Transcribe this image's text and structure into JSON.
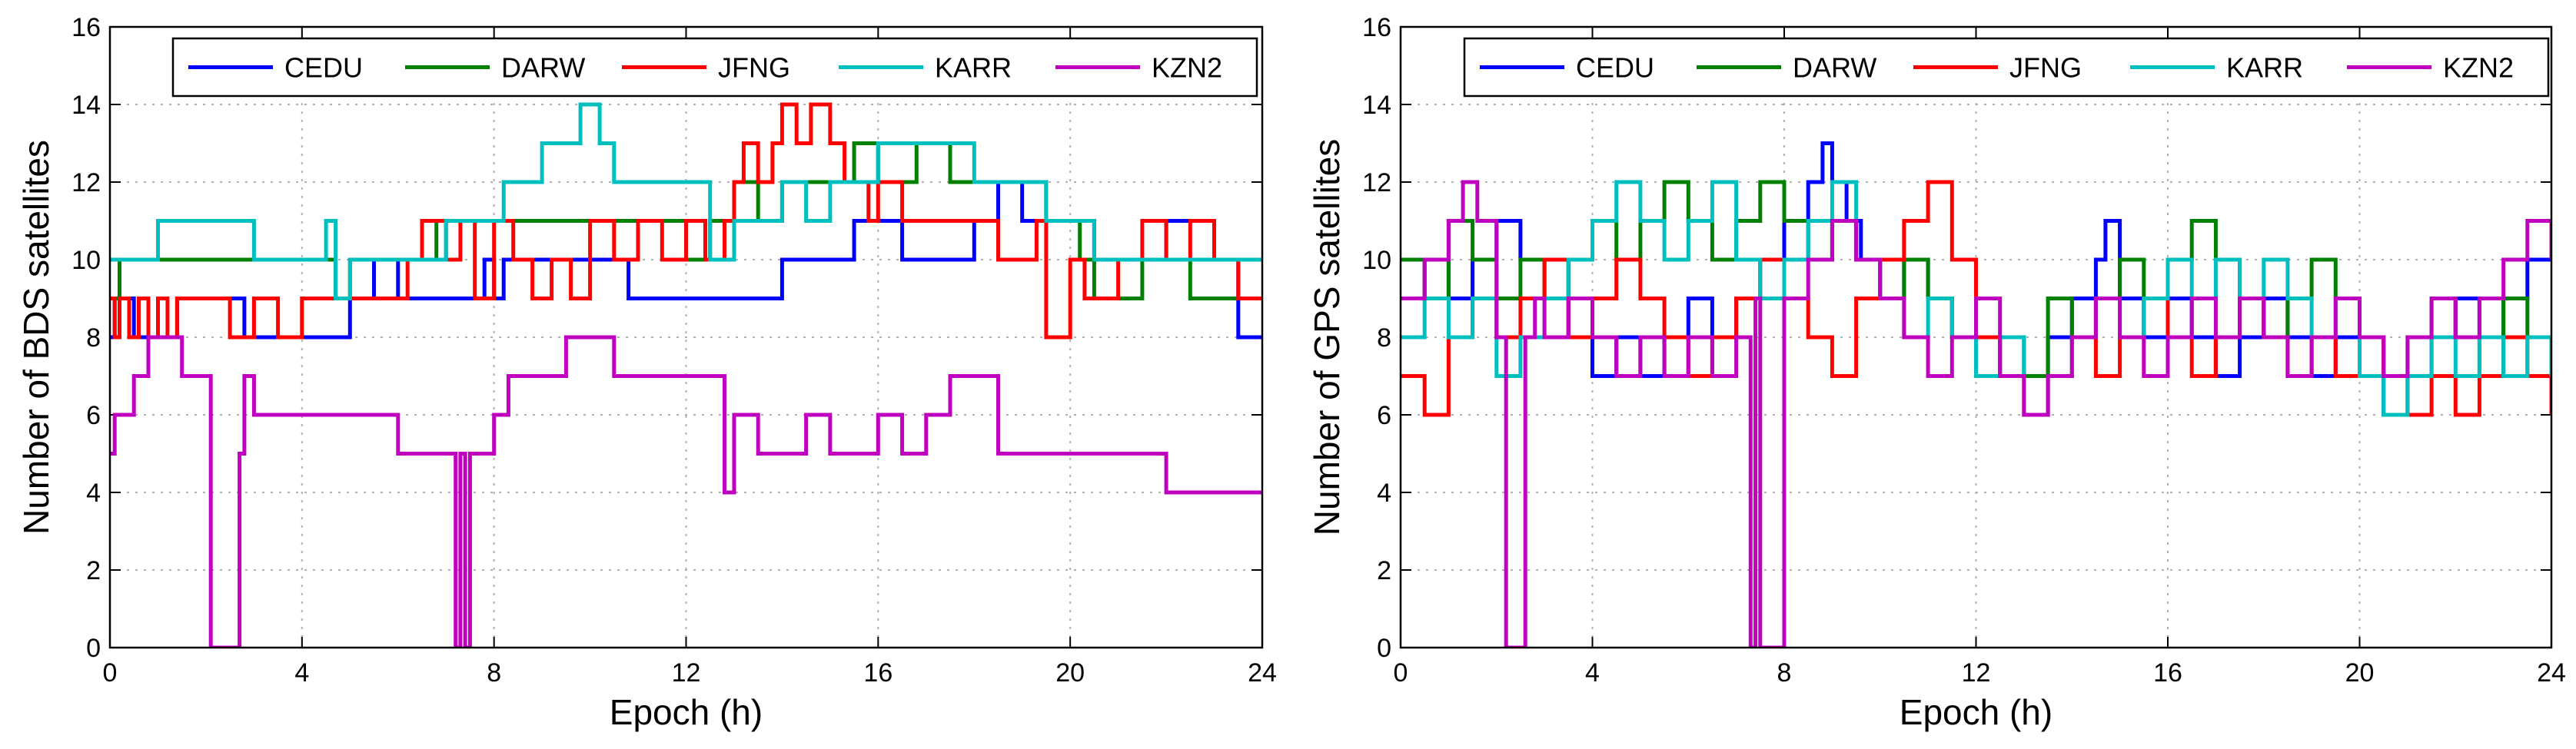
{
  "colors": {
    "CEDU": "#0000ff",
    "DARW": "#008000",
    "JFNG": "#ff0000",
    "KARR": "#00bfbf",
    "KZN2": "#bf00bf",
    "grid": "#b0b0b0",
    "axis": "#000000"
  },
  "chart_data": [
    {
      "type": "line",
      "title": "",
      "xlabel": "Epoch (h)",
      "ylabel": "Number of BDS satellites",
      "xlim": [
        0,
        24
      ],
      "ylim": [
        0,
        16
      ],
      "xticks": [
        "0",
        "4",
        "8",
        "12",
        "16",
        "20",
        "24"
      ],
      "yticks": [
        "0",
        "2",
        "4",
        "6",
        "8",
        "10",
        "12",
        "14",
        "16"
      ],
      "grid": true,
      "legend_position": "top",
      "series": [
        {
          "name": "CEDU",
          "x": [
            0,
            0.1,
            0.5,
            1.4,
            2.8,
            4.8,
            5.0,
            5.5,
            6.0,
            6.2,
            7.8,
            8.0,
            8.2,
            10.2,
            10.8,
            13.5,
            14.0,
            15.0,
            15.5,
            16.0,
            16.5,
            17.8,
            18.0,
            18.5,
            19.0,
            20.0,
            20.5,
            21.5,
            22.0,
            23.0,
            23.5,
            24.0
          ],
          "y": [
            8,
            9,
            8,
            9,
            8,
            8,
            9,
            10,
            9,
            9,
            10,
            9,
            10,
            10,
            9,
            9,
            10,
            10,
            11,
            11,
            10,
            10,
            11,
            12,
            11,
            11,
            10,
            10,
            11,
            10,
            8,
            8
          ]
        },
        {
          "name": "DARW",
          "x": [
            0,
            0.2,
            0.4,
            3.0,
            4.5,
            4.7,
            5.0,
            5.5,
            6.0,
            6.8,
            7.5,
            8.2,
            8.5,
            9.0,
            10.5,
            11.0,
            12.0,
            12.5,
            13.0,
            13.5,
            14.0,
            15.0,
            15.5,
            16.0,
            16.8,
            17.5,
            18.5,
            19.5,
            20.2,
            20.5,
            21.5,
            22.5,
            23.5,
            24.0
          ],
          "y": [
            9,
            10,
            10,
            10,
            10,
            9,
            10,
            10,
            10,
            11,
            11,
            11,
            11,
            11,
            11,
            11,
            10,
            11,
            12,
            11,
            12,
            12,
            13,
            12,
            13,
            12,
            12,
            11,
            10,
            9,
            10,
            9,
            9,
            9
          ]
        },
        {
          "name": "JFNG",
          "x": [
            0,
            0.1,
            0.2,
            0.4,
            0.6,
            0.8,
            1.0,
            1.2,
            1.4,
            2.5,
            3.0,
            3.5,
            4.0,
            5.8,
            6.2,
            6.5,
            7.0,
            7.3,
            7.6,
            8.0,
            8.4,
            8.8,
            9.2,
            9.6,
            10.0,
            10.5,
            11.0,
            11.5,
            12.0,
            12.4,
            12.8,
            13.0,
            13.2,
            13.5,
            13.8,
            14.0,
            14.3,
            14.6,
            15.0,
            15.3,
            15.8,
            16.0,
            16.5,
            17.0,
            18.0,
            18.5,
            19.0,
            19.3,
            19.5,
            20.0,
            20.3,
            21.0,
            21.5,
            22.0,
            22.5,
            23.0,
            23.5,
            24.0
          ],
          "y": [
            9,
            8,
            9,
            8,
            9,
            8,
            9,
            8,
            9,
            8,
            9,
            8,
            9,
            9,
            10,
            11,
            10,
            11,
            9,
            11,
            10,
            9,
            10,
            9,
            11,
            10,
            11,
            10,
            11,
            10,
            11,
            12,
            13,
            12,
            13,
            14,
            13,
            14,
            13,
            12,
            11,
            12,
            11,
            11,
            11,
            10,
            10,
            11,
            8,
            10,
            9,
            10,
            11,
            10,
            11,
            10,
            9,
            9
          ]
        },
        {
          "name": "KARR",
          "x": [
            0,
            0.1,
            0.5,
            1.0,
            1.5,
            2.5,
            3.0,
            4.5,
            4.7,
            5.0,
            5.5,
            6.0,
            7.0,
            7.5,
            8.0,
            8.2,
            8.5,
            9.0,
            9.5,
            9.8,
            10.2,
            10.5,
            11.0,
            11.5,
            12.0,
            12.5,
            13.0,
            13.5,
            14.0,
            14.5,
            15.0,
            15.5,
            16.0,
            17.0,
            18.0,
            18.5,
            19.0,
            19.5,
            20.0,
            20.5,
            21.0,
            22.0,
            22.5,
            23.0,
            24.0
          ],
          "y": [
            10,
            10,
            10,
            11,
            11,
            11,
            10,
            11,
            9,
            10,
            10,
            10,
            11,
            11,
            11,
            12,
            12,
            13,
            13,
            14,
            13,
            12,
            12,
            12,
            12,
            10,
            11,
            11,
            12,
            11,
            12,
            12,
            13,
            13,
            12,
            12,
            12,
            11,
            11,
            10,
            10,
            10,
            10,
            10,
            10
          ]
        },
        {
          "name": "KZN2",
          "x": [
            0,
            0.1,
            0.5,
            0.8,
            1.0,
            1.5,
            1.8,
            2.1,
            2.2,
            2.6,
            2.7,
            2.8,
            3.0,
            4.0,
            5.0,
            6.0,
            7.0,
            7.2,
            7.3,
            7.4,
            7.5,
            7.6,
            8.0,
            8.3,
            8.5,
            9.0,
            9.5,
            10.0,
            10.5,
            11.0,
            12.0,
            12.5,
            12.8,
            13.0,
            13.5,
            14.0,
            14.5,
            15.0,
            15.5,
            16.0,
            16.5,
            17.0,
            17.5,
            18.0,
            18.5,
            19.0,
            20.0,
            21.5,
            22.0,
            23.0,
            24.0
          ],
          "y": [
            5,
            6,
            7,
            8,
            8,
            7,
            7,
            0,
            0,
            0,
            5,
            7,
            6,
            6,
            6,
            5,
            5,
            0,
            5,
            0,
            5,
            5,
            6,
            7,
            7,
            7,
            8,
            8,
            7,
            7,
            7,
            7,
            4,
            6,
            5,
            5,
            6,
            5,
            5,
            6,
            5,
            6,
            7,
            7,
            5,
            5,
            5,
            5,
            4,
            4,
            4
          ]
        }
      ]
    },
    {
      "type": "line",
      "title": "",
      "xlabel": "Epoch (h)",
      "ylabel": "Number of GPS satellites",
      "xlim": [
        0,
        24
      ],
      "ylim": [
        0,
        16
      ],
      "xticks": [
        "0",
        "4",
        "8",
        "12",
        "16",
        "20",
        "24"
      ],
      "yticks": [
        "0",
        "2",
        "4",
        "6",
        "8",
        "10",
        "12",
        "14",
        "16"
      ],
      "grid": true,
      "legend_position": "top",
      "series": [
        {
          "name": "CEDU",
          "x": [
            0,
            0.5,
            1.0,
            1.5,
            2.0,
            2.5,
            3.0,
            3.5,
            4.0,
            4.5,
            5.0,
            5.5,
            6.0,
            6.5,
            7.0,
            7.5,
            8.0,
            8.5,
            8.8,
            9.0,
            9.3,
            9.6,
            10.0,
            10.5,
            11.0,
            11.5,
            12.0,
            12.5,
            13.0,
            13.5,
            14.0,
            14.5,
            14.7,
            15.0,
            15.5,
            16.0,
            16.5,
            17.0,
            17.5,
            18.0,
            18.5,
            19.0,
            19.5,
            20.0,
            20.5,
            21.0,
            21.5,
            22.0,
            22.5,
            23.0,
            23.5,
            24.0
          ],
          "y": [
            9,
            10,
            9,
            10,
            11,
            10,
            9,
            8,
            7,
            8,
            7,
            8,
            9,
            8,
            9,
            10,
            11,
            12,
            13,
            12,
            11,
            10,
            9,
            10,
            9,
            8,
            7,
            8,
            7,
            8,
            9,
            10,
            11,
            9,
            8,
            9,
            8,
            7,
            8,
            9,
            8,
            7,
            8,
            7,
            6,
            7,
            8,
            9,
            8,
            9,
            10,
            10
          ]
        },
        {
          "name": "DARW",
          "x": [
            0,
            0.5,
            1.0,
            1.5,
            2.0,
            2.5,
            3.0,
            3.5,
            4.0,
            4.5,
            5.0,
            5.5,
            6.0,
            6.5,
            7.0,
            7.5,
            8.0,
            8.5,
            9.0,
            9.5,
            10.0,
            10.5,
            11.0,
            11.5,
            12.0,
            12.5,
            13.0,
            13.5,
            14.0,
            14.5,
            15.0,
            15.5,
            16.0,
            16.5,
            17.0,
            17.5,
            18.0,
            18.5,
            19.0,
            19.5,
            20.0,
            20.5,
            21.0,
            21.5,
            22.0,
            22.5,
            23.0,
            23.5,
            24.0
          ],
          "y": [
            10,
            9,
            11,
            10,
            9,
            10,
            9,
            10,
            11,
            10,
            11,
            12,
            11,
            10,
            11,
            12,
            11,
            10,
            11,
            10,
            9,
            10,
            9,
            8,
            7,
            8,
            7,
            9,
            8,
            9,
            10,
            9,
            10,
            11,
            10,
            9,
            8,
            9,
            10,
            9,
            8,
            7,
            8,
            9,
            8,
            7,
            9,
            8,
            8
          ]
        },
        {
          "name": "JFNG",
          "x": [
            0,
            0.5,
            1.0,
            1.5,
            2.0,
            2.5,
            3.0,
            3.5,
            4.0,
            4.5,
            5.0,
            5.5,
            6.0,
            6.5,
            7.0,
            7.5,
            8.0,
            8.5,
            9.0,
            9.5,
            10.0,
            10.5,
            11.0,
            11.5,
            12.0,
            12.5,
            13.0,
            13.5,
            14.0,
            14.5,
            15.0,
            15.5,
            16.0,
            16.5,
            17.0,
            17.5,
            18.0,
            18.5,
            19.0,
            19.5,
            20.0,
            20.5,
            21.0,
            21.5,
            22.0,
            22.5,
            23.0,
            23.5,
            24.0
          ],
          "y": [
            7,
            6,
            8,
            9,
            8,
            9,
            10,
            8,
            9,
            10,
            9,
            8,
            7,
            8,
            9,
            10,
            9,
            8,
            7,
            9,
            10,
            11,
            12,
            10,
            8,
            7,
            6,
            7,
            8,
            7,
            8,
            9,
            8,
            7,
            8,
            9,
            8,
            7,
            8,
            7,
            8,
            7,
            6,
            7,
            6,
            7,
            8,
            7,
            6
          ]
        },
        {
          "name": "KARR",
          "x": [
            0,
            0.5,
            1.0,
            1.5,
            2.0,
            2.5,
            3.0,
            3.5,
            4.0,
            4.5,
            5.0,
            5.5,
            6.0,
            6.5,
            7.0,
            7.5,
            8.0,
            8.5,
            9.0,
            9.5,
            10.0,
            10.5,
            11.0,
            11.5,
            12.0,
            12.5,
            13.0,
            13.5,
            14.0,
            14.5,
            15.0,
            15.5,
            16.0,
            16.5,
            17.0,
            17.5,
            18.0,
            18.5,
            19.0,
            19.5,
            20.0,
            20.5,
            21.0,
            21.5,
            22.0,
            22.5,
            23.0,
            23.5,
            24.0
          ],
          "y": [
            8,
            9,
            8,
            9,
            7,
            8,
            9,
            10,
            11,
            12,
            11,
            10,
            11,
            12,
            10,
            9,
            10,
            11,
            12,
            10,
            9,
            8,
            9,
            8,
            7,
            8,
            6,
            7,
            8,
            9,
            8,
            9,
            10,
            9,
            10,
            9,
            10,
            9,
            8,
            9,
            7,
            6,
            7,
            8,
            7,
            8,
            7,
            8,
            7
          ]
        },
        {
          "name": "KZN2",
          "x": [
            0,
            0.5,
            1.0,
            1.3,
            1.6,
            2.0,
            2.2,
            2.6,
            2.8,
            3.0,
            3.5,
            4.0,
            4.5,
            5.0,
            5.5,
            6.0,
            6.5,
            7.0,
            7.3,
            7.4,
            7.5,
            8.0,
            8.5,
            9.0,
            9.5,
            10.0,
            10.5,
            11.0,
            11.5,
            12.0,
            12.5,
            13.0,
            13.5,
            14.0,
            14.5,
            15.0,
            15.5,
            16.0,
            16.5,
            17.0,
            17.5,
            18.0,
            18.5,
            19.0,
            19.5,
            20.0,
            20.5,
            21.0,
            21.5,
            22.0,
            22.5,
            23.0,
            23.5,
            24.0
          ],
          "y": [
            9,
            10,
            11,
            12,
            11,
            8,
            0,
            8,
            9,
            8,
            9,
            8,
            7,
            8,
            7,
            8,
            7,
            8,
            0,
            9,
            0,
            9,
            10,
            11,
            10,
            9,
            8,
            7,
            8,
            9,
            7,
            6,
            7,
            8,
            9,
            8,
            7,
            8,
            9,
            8,
            9,
            8,
            7,
            8,
            9,
            8,
            7,
            8,
            9,
            8,
            9,
            10,
            11,
            10
          ]
        }
      ]
    }
  ]
}
